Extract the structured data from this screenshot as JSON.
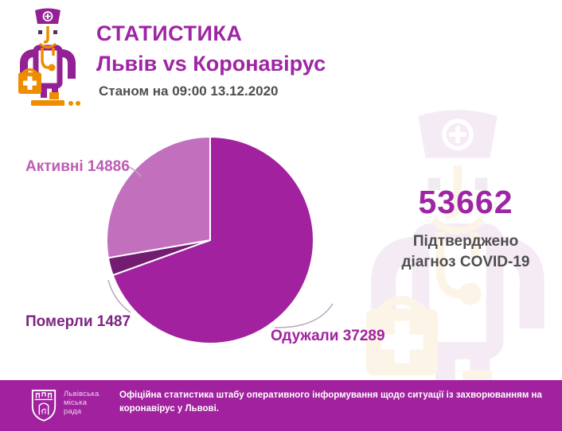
{
  "header": {
    "title": "СТАТИСТИКА",
    "subtitle": "Львів vs Коронавірус",
    "timestamp": "Станом на 09:00 13.12.2020"
  },
  "chart_data": {
    "type": "pie",
    "total": 53662,
    "start_angle_deg": 0,
    "direction": "clockwise",
    "stroke": "#ffffff",
    "stroke_width": 2,
    "legend_position": "outside-labels",
    "slices": [
      {
        "key": "recovered",
        "label": "Одужали",
        "value": 37289,
        "color": "#a1219f",
        "label_color": "#a1219f"
      },
      {
        "key": "died",
        "label": "Померли",
        "value": 1487,
        "color": "#731d72",
        "label_color": "#7b2482"
      },
      {
        "key": "active",
        "label": "Активні",
        "value": 14886,
        "color": "#c26fbe",
        "label_color": "#bd5cb5"
      }
    ]
  },
  "summary": {
    "confirmed_total": "53662",
    "caption_lines": [
      "Підтверджено",
      "діагноз COVID-19"
    ]
  },
  "footer": {
    "logo_lines": [
      "Львівська",
      "міська",
      "рада"
    ],
    "text": "Офіційна статистика штабу оперативного інформування щодо ситуації із захворюванням на коронавірус у Львові."
  },
  "icons": {
    "doctor": "doctor-with-medical-bag-icon",
    "shield": "lviv-city-coat-of-arms-icon"
  },
  "colors": {
    "accent-violet": "#9e26a4",
    "accent-magenta": "#a1219f",
    "text-dark": "#4e4e4e",
    "slice-light": "#c26fbe",
    "slice-dark": "#731d72",
    "icon-purple": "#932195",
    "icon-orange": "#ee8d00",
    "leader-line": "#b9a8bd"
  }
}
